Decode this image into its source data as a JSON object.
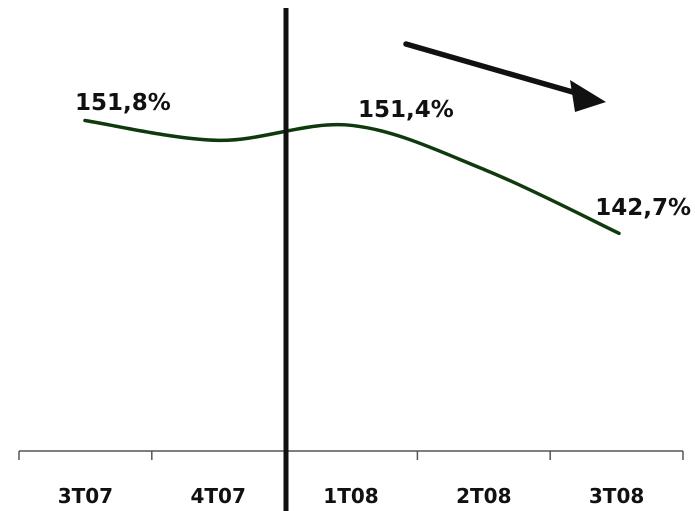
{
  "chart_data": {
    "type": "line",
    "categories": [
      "3T07",
      "4T07",
      "1T08",
      "2T08",
      "3T08"
    ],
    "series": [
      {
        "values": [
          151.8,
          150.2,
          151.4,
          147.8,
          142.7
        ],
        "color": "#0e3a0e"
      }
    ],
    "data_labels": [
      {
        "index": 0,
        "text": "151,8%"
      },
      {
        "index": 2,
        "text": "151,4%"
      },
      {
        "index": 4,
        "text": "142,7%"
      }
    ],
    "annotations": [
      {
        "kind": "vertical-divider",
        "between": [
          "4T07",
          "1T08"
        ]
      },
      {
        "kind": "trend-arrow",
        "direction": "down-right"
      }
    ],
    "title": "",
    "xlabel": "",
    "ylabel": "",
    "grid": false,
    "legend": "none"
  }
}
